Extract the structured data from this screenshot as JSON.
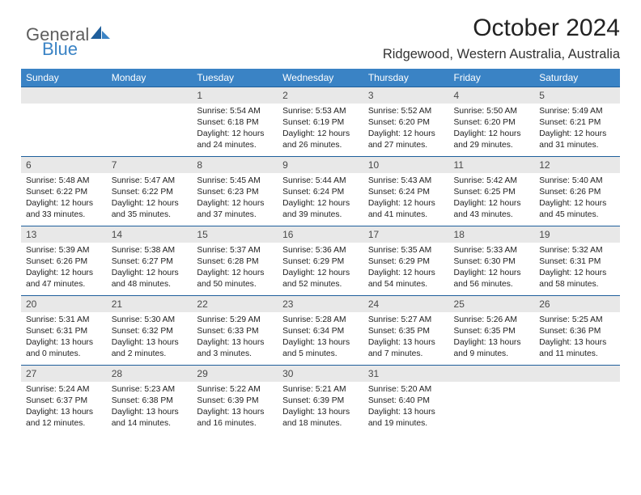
{
  "brand": {
    "part1": "General",
    "part2": "Blue"
  },
  "title": "October 2024",
  "location": "Ridgewood, Western Australia, Australia",
  "colors": {
    "header_bg": "#3a83c5",
    "header_border": "#1f5f9c",
    "daynum_bg": "#e8e8e8",
    "text": "#222222",
    "brand_gray": "#5d5d5d",
    "brand_blue": "#3a83c5",
    "background": "#ffffff"
  },
  "weekdays": [
    "Sunday",
    "Monday",
    "Tuesday",
    "Wednesday",
    "Thursday",
    "Friday",
    "Saturday"
  ],
  "weeks": [
    [
      null,
      null,
      {
        "n": "1",
        "sr": "5:54 AM",
        "ss": "6:18 PM",
        "dl": "12 hours and 24 minutes."
      },
      {
        "n": "2",
        "sr": "5:53 AM",
        "ss": "6:19 PM",
        "dl": "12 hours and 26 minutes."
      },
      {
        "n": "3",
        "sr": "5:52 AM",
        "ss": "6:20 PM",
        "dl": "12 hours and 27 minutes."
      },
      {
        "n": "4",
        "sr": "5:50 AM",
        "ss": "6:20 PM",
        "dl": "12 hours and 29 minutes."
      },
      {
        "n": "5",
        "sr": "5:49 AM",
        "ss": "6:21 PM",
        "dl": "12 hours and 31 minutes."
      }
    ],
    [
      {
        "n": "6",
        "sr": "5:48 AM",
        "ss": "6:22 PM",
        "dl": "12 hours and 33 minutes."
      },
      {
        "n": "7",
        "sr": "5:47 AM",
        "ss": "6:22 PM",
        "dl": "12 hours and 35 minutes."
      },
      {
        "n": "8",
        "sr": "5:45 AM",
        "ss": "6:23 PM",
        "dl": "12 hours and 37 minutes."
      },
      {
        "n": "9",
        "sr": "5:44 AM",
        "ss": "6:24 PM",
        "dl": "12 hours and 39 minutes."
      },
      {
        "n": "10",
        "sr": "5:43 AM",
        "ss": "6:24 PM",
        "dl": "12 hours and 41 minutes."
      },
      {
        "n": "11",
        "sr": "5:42 AM",
        "ss": "6:25 PM",
        "dl": "12 hours and 43 minutes."
      },
      {
        "n": "12",
        "sr": "5:40 AM",
        "ss": "6:26 PM",
        "dl": "12 hours and 45 minutes."
      }
    ],
    [
      {
        "n": "13",
        "sr": "5:39 AM",
        "ss": "6:26 PM",
        "dl": "12 hours and 47 minutes."
      },
      {
        "n": "14",
        "sr": "5:38 AM",
        "ss": "6:27 PM",
        "dl": "12 hours and 48 minutes."
      },
      {
        "n": "15",
        "sr": "5:37 AM",
        "ss": "6:28 PM",
        "dl": "12 hours and 50 minutes."
      },
      {
        "n": "16",
        "sr": "5:36 AM",
        "ss": "6:29 PM",
        "dl": "12 hours and 52 minutes."
      },
      {
        "n": "17",
        "sr": "5:35 AM",
        "ss": "6:29 PM",
        "dl": "12 hours and 54 minutes."
      },
      {
        "n": "18",
        "sr": "5:33 AM",
        "ss": "6:30 PM",
        "dl": "12 hours and 56 minutes."
      },
      {
        "n": "19",
        "sr": "5:32 AM",
        "ss": "6:31 PM",
        "dl": "12 hours and 58 minutes."
      }
    ],
    [
      {
        "n": "20",
        "sr": "5:31 AM",
        "ss": "6:31 PM",
        "dl": "13 hours and 0 minutes."
      },
      {
        "n": "21",
        "sr": "5:30 AM",
        "ss": "6:32 PM",
        "dl": "13 hours and 2 minutes."
      },
      {
        "n": "22",
        "sr": "5:29 AM",
        "ss": "6:33 PM",
        "dl": "13 hours and 3 minutes."
      },
      {
        "n": "23",
        "sr": "5:28 AM",
        "ss": "6:34 PM",
        "dl": "13 hours and 5 minutes."
      },
      {
        "n": "24",
        "sr": "5:27 AM",
        "ss": "6:35 PM",
        "dl": "13 hours and 7 minutes."
      },
      {
        "n": "25",
        "sr": "5:26 AM",
        "ss": "6:35 PM",
        "dl": "13 hours and 9 minutes."
      },
      {
        "n": "26",
        "sr": "5:25 AM",
        "ss": "6:36 PM",
        "dl": "13 hours and 11 minutes."
      }
    ],
    [
      {
        "n": "27",
        "sr": "5:24 AM",
        "ss": "6:37 PM",
        "dl": "13 hours and 12 minutes."
      },
      {
        "n": "28",
        "sr": "5:23 AM",
        "ss": "6:38 PM",
        "dl": "13 hours and 14 minutes."
      },
      {
        "n": "29",
        "sr": "5:22 AM",
        "ss": "6:39 PM",
        "dl": "13 hours and 16 minutes."
      },
      {
        "n": "30",
        "sr": "5:21 AM",
        "ss": "6:39 PM",
        "dl": "13 hours and 18 minutes."
      },
      {
        "n": "31",
        "sr": "5:20 AM",
        "ss": "6:40 PM",
        "dl": "13 hours and 19 minutes."
      },
      null,
      null
    ]
  ],
  "labels": {
    "sunrise": "Sunrise:",
    "sunset": "Sunset:",
    "daylight": "Daylight:"
  }
}
